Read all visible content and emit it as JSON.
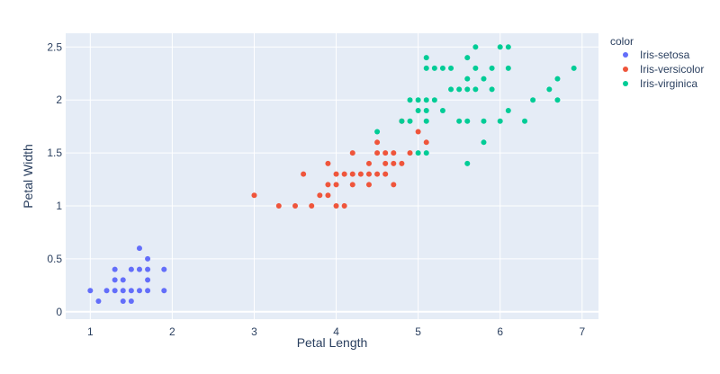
{
  "chart_data": {
    "type": "scatter",
    "title": "",
    "xlabel": "Petal Length",
    "ylabel": "Petal Width",
    "xlim": [
      0.7,
      7.2
    ],
    "ylim": [
      -0.07,
      2.63
    ],
    "xticks": [
      1,
      2,
      3,
      4,
      5,
      6,
      7
    ],
    "yticks": [
      0,
      0.5,
      1,
      1.5,
      2,
      2.5
    ],
    "grid": true,
    "legend": {
      "title": "color",
      "placement": "right"
    },
    "series": [
      {
        "name": "Iris-setosa",
        "color": "#636efa",
        "points": [
          [
            1.0,
            0.2
          ],
          [
            1.1,
            0.1
          ],
          [
            1.2,
            0.2
          ],
          [
            1.3,
            0.2
          ],
          [
            1.3,
            0.3
          ],
          [
            1.3,
            0.4
          ],
          [
            1.4,
            0.1
          ],
          [
            1.4,
            0.2
          ],
          [
            1.4,
            0.3
          ],
          [
            1.5,
            0.1
          ],
          [
            1.5,
            0.2
          ],
          [
            1.5,
            0.4
          ],
          [
            1.6,
            0.2
          ],
          [
            1.6,
            0.4
          ],
          [
            1.6,
            0.6
          ],
          [
            1.7,
            0.2
          ],
          [
            1.7,
            0.3
          ],
          [
            1.7,
            0.4
          ],
          [
            1.7,
            0.5
          ],
          [
            1.9,
            0.2
          ],
          [
            1.9,
            0.4
          ]
        ]
      },
      {
        "name": "Iris-versicolor",
        "color": "#ef553b",
        "points": [
          [
            3.0,
            1.1
          ],
          [
            3.3,
            1.0
          ],
          [
            3.5,
            1.0
          ],
          [
            3.6,
            1.3
          ],
          [
            3.7,
            1.0
          ],
          [
            3.8,
            1.1
          ],
          [
            3.9,
            1.1
          ],
          [
            3.9,
            1.2
          ],
          [
            3.9,
            1.4
          ],
          [
            4.0,
            1.0
          ],
          [
            4.0,
            1.2
          ],
          [
            4.0,
            1.3
          ],
          [
            4.1,
            1.0
          ],
          [
            4.1,
            1.3
          ],
          [
            4.2,
            1.2
          ],
          [
            4.2,
            1.3
          ],
          [
            4.2,
            1.5
          ],
          [
            4.3,
            1.3
          ],
          [
            4.4,
            1.2
          ],
          [
            4.4,
            1.3
          ],
          [
            4.4,
            1.4
          ],
          [
            4.5,
            1.3
          ],
          [
            4.5,
            1.5
          ],
          [
            4.5,
            1.6
          ],
          [
            4.6,
            1.3
          ],
          [
            4.6,
            1.4
          ],
          [
            4.6,
            1.5
          ],
          [
            4.7,
            1.2
          ],
          [
            4.7,
            1.4
          ],
          [
            4.7,
            1.5
          ],
          [
            4.8,
            1.4
          ],
          [
            4.8,
            1.8
          ],
          [
            4.9,
            1.5
          ],
          [
            5.0,
            1.7
          ],
          [
            5.1,
            1.6
          ]
        ]
      },
      {
        "name": "Iris-virginica",
        "color": "#00cc96",
        "points": [
          [
            4.5,
            1.7
          ],
          [
            4.8,
            1.8
          ],
          [
            4.9,
            1.8
          ],
          [
            4.9,
            2.0
          ],
          [
            5.0,
            1.5
          ],
          [
            5.0,
            1.9
          ],
          [
            5.0,
            2.0
          ],
          [
            5.1,
            1.5
          ],
          [
            5.1,
            1.8
          ],
          [
            5.1,
            1.9
          ],
          [
            5.1,
            2.0
          ],
          [
            5.1,
            2.3
          ],
          [
            5.1,
            2.4
          ],
          [
            5.2,
            2.0
          ],
          [
            5.2,
            2.3
          ],
          [
            5.3,
            1.9
          ],
          [
            5.3,
            2.3
          ],
          [
            5.4,
            2.1
          ],
          [
            5.4,
            2.3
          ],
          [
            5.5,
            1.8
          ],
          [
            5.5,
            2.1
          ],
          [
            5.6,
            1.4
          ],
          [
            5.6,
            1.8
          ],
          [
            5.6,
            2.1
          ],
          [
            5.6,
            2.2
          ],
          [
            5.6,
            2.4
          ],
          [
            5.7,
            2.1
          ],
          [
            5.7,
            2.3
          ],
          [
            5.7,
            2.5
          ],
          [
            5.8,
            1.6
          ],
          [
            5.8,
            1.8
          ],
          [
            5.8,
            2.2
          ],
          [
            5.9,
            2.1
          ],
          [
            5.9,
            2.3
          ],
          [
            6.0,
            1.8
          ],
          [
            6.0,
            2.5
          ],
          [
            6.1,
            1.9
          ],
          [
            6.1,
            2.3
          ],
          [
            6.1,
            2.5
          ],
          [
            6.3,
            1.8
          ],
          [
            6.4,
            2.0
          ],
          [
            6.6,
            2.1
          ],
          [
            6.7,
            2.0
          ],
          [
            6.7,
            2.2
          ],
          [
            6.9,
            2.3
          ]
        ]
      }
    ]
  },
  "colors": {
    "plot_background": "#e5ecf6",
    "grid": "#ffffff",
    "text": "#2a3f5f"
  }
}
